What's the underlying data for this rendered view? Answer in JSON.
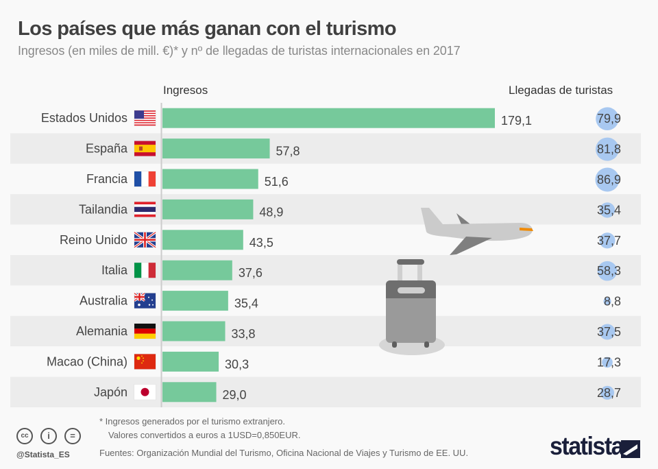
{
  "header": {
    "title": "Los países que más ganan con el turismo",
    "subtitle": "Ingresos (en miles de mill. €)* y nº de llegadas de turistas internacionales en 2017"
  },
  "columns": {
    "revenue": "Ingresos",
    "arrivals": "Llegadas de turistas"
  },
  "colors": {
    "bar": "#76c99b",
    "bubble": "#a8c8f0",
    "row_alt": "#ececec",
    "row_base": "#f9f9f9",
    "accent_orange": "#f08a00"
  },
  "chart_data": {
    "type": "bar",
    "title": "Los países que más ganan con el turismo",
    "subtitle": "Ingresos (en miles de mill. €)* y nº de llegadas de turistas internacionales en 2017",
    "xlabel": "",
    "ylabel": "",
    "orientation": "horizontal",
    "categories": [
      "Estados Unidos",
      "España",
      "Francia",
      "Tailandia",
      "Reino Unido",
      "Italia",
      "Australia",
      "Alemania",
      "Macao (China)",
      "Japón"
    ],
    "flags": [
      "us-flag-icon",
      "es-flag-icon",
      "fr-flag-icon",
      "th-flag-icon",
      "gb-flag-icon",
      "it-flag-icon",
      "au-flag-icon",
      "de-flag-icon",
      "cn-flag-icon",
      "jp-flag-icon"
    ],
    "series": [
      {
        "name": "Ingresos",
        "type": "bar",
        "values": [
          179.1,
          57.8,
          51.6,
          48.9,
          43.5,
          37.6,
          35.4,
          33.8,
          30.3,
          29.0
        ],
        "labels": [
          "179,1",
          "57,8",
          "51,6",
          "48,9",
          "43,5",
          "37,6",
          "35,4",
          "33,8",
          "30,3",
          "29,0"
        ]
      },
      {
        "name": "Llegadas de turistas",
        "type": "bubble",
        "values": [
          79.9,
          81.8,
          86.9,
          35.4,
          37.7,
          58.3,
          8.8,
          37.5,
          17.3,
          28.7
        ],
        "labels": [
          "79,9",
          "81,8",
          "86,9",
          "35,4",
          "37,7",
          "58,3",
          "8,8",
          "37,5",
          "17,3",
          "28,7"
        ]
      }
    ],
    "xlim": [
      0,
      179.1
    ],
    "grid": false,
    "legend": "none"
  },
  "footer": {
    "note_line1": "* Ingresos generados por el turismo extranjero.",
    "note_line2": "Valores convertidos a euros a 1USD=0,850EUR.",
    "sources": "Fuentes: Organización Mundial del Turismo, Oficina Nacional de Viajes y Turismo de EE. UU.",
    "handle": "@Statista_ES",
    "brand": "statista",
    "license_icons": [
      "cc-icon",
      "attribution-icon",
      "no-derivatives-icon"
    ],
    "license_glyphs": [
      "cc",
      "i",
      "="
    ]
  }
}
